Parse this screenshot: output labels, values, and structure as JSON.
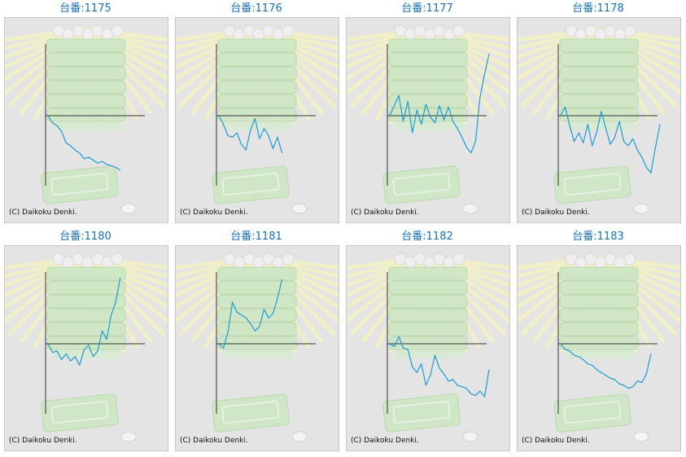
{
  "copyright_text": "(C) Daikoku Denki.",
  "colors": {
    "title": "#1a6fb0",
    "line": "#1e9ad6",
    "axis": "#333333",
    "background": "#e4e4e4"
  },
  "chart_data": [
    {
      "type": "line",
      "title": "台番:1175",
      "ylim": [
        -100,
        100
      ],
      "x": [
        0,
        1,
        2,
        3,
        4,
        5,
        6,
        7,
        8,
        9,
        10,
        11,
        12,
        13,
        14,
        15,
        16
      ],
      "y": [
        0,
        -10,
        -14,
        -22,
        -38,
        -42,
        -48,
        -52,
        -60,
        -58,
        -62,
        -66,
        -64,
        -68,
        -70,
        -72,
        -76
      ]
    },
    {
      "type": "line",
      "title": "台番:1176",
      "ylim": [
        -100,
        100
      ],
      "x": [
        0,
        1,
        2,
        3,
        4,
        5,
        6,
        7,
        8,
        9,
        10,
        11,
        12,
        13,
        14
      ],
      "y": [
        0,
        -12,
        -28,
        -30,
        -24,
        -40,
        -48,
        -20,
        -4,
        -32,
        -18,
        -28,
        -46,
        -30,
        -52
      ]
    },
    {
      "type": "line",
      "title": "台番:1177",
      "ylim": [
        -100,
        100
      ],
      "x": [
        0,
        1,
        2,
        3,
        4,
        5,
        6,
        7,
        8,
        9,
        10,
        11,
        12,
        13,
        14,
        15,
        16,
        17,
        18,
        19,
        20,
        21,
        22
      ],
      "y": [
        0,
        14,
        28,
        -8,
        20,
        -24,
        8,
        -12,
        16,
        -2,
        -10,
        14,
        -6,
        12,
        -8,
        -18,
        -30,
        -44,
        -52,
        -36,
        26,
        58,
        86
      ]
    },
    {
      "type": "line",
      "title": "台番:1178",
      "ylim": [
        -100,
        100
      ],
      "x": [
        0,
        1,
        2,
        3,
        4,
        5,
        6,
        7,
        8,
        9,
        10,
        11,
        12,
        13,
        14,
        15,
        16,
        17,
        18,
        19,
        20,
        21,
        22
      ],
      "y": [
        0,
        12,
        -14,
        -36,
        -24,
        -38,
        -12,
        -42,
        -22,
        6,
        -18,
        -40,
        -30,
        -8,
        -36,
        -42,
        -32,
        -48,
        -58,
        -72,
        -80,
        -44,
        -12
      ]
    },
    {
      "type": "line",
      "title": "台番:1180",
      "ylim": [
        -100,
        100
      ],
      "x": [
        0,
        1,
        2,
        3,
        4,
        5,
        6,
        7,
        8,
        9,
        10,
        11,
        12,
        13,
        14,
        15,
        16
      ],
      "y": [
        0,
        -12,
        -10,
        -22,
        -14,
        -24,
        -18,
        -30,
        -8,
        -2,
        -18,
        -10,
        18,
        6,
        40,
        58,
        92
      ]
    },
    {
      "type": "line",
      "title": "台番:1181",
      "ylim": [
        -100,
        100
      ],
      "x": [
        0,
        1,
        2,
        3,
        4,
        5,
        6,
        7,
        8,
        9,
        10,
        11,
        12,
        13,
        14
      ],
      "y": [
        0,
        -6,
        16,
        58,
        44,
        40,
        36,
        28,
        18,
        24,
        48,
        36,
        42,
        64,
        90
      ]
    },
    {
      "type": "line",
      "title": "台番:1182",
      "ylim": [
        -100,
        100
      ],
      "x": [
        0,
        1,
        2,
        3,
        4,
        5,
        6,
        7,
        8,
        9,
        10,
        11,
        12,
        13,
        14,
        15,
        16,
        17,
        18,
        19,
        20,
        21,
        22
      ],
      "y": [
        0,
        -4,
        10,
        -6,
        -8,
        -32,
        -40,
        -28,
        -58,
        -44,
        -16,
        -34,
        -42,
        -52,
        -50,
        -58,
        -60,
        -62,
        -70,
        -72,
        -66,
        -74,
        -36
      ]
    },
    {
      "type": "line",
      "title": "台番:1183",
      "ylim": [
        -100,
        100
      ],
      "x": [
        0,
        1,
        2,
        3,
        4,
        5,
        6,
        7,
        8,
        9,
        10,
        11,
        12,
        13,
        14,
        15,
        16,
        17,
        18,
        19,
        20
      ],
      "y": [
        0,
        -8,
        -10,
        -16,
        -18,
        -22,
        -28,
        -30,
        -36,
        -40,
        -44,
        -48,
        -50,
        -56,
        -58,
        -62,
        -60,
        -52,
        -54,
        -42,
        -14
      ]
    }
  ]
}
